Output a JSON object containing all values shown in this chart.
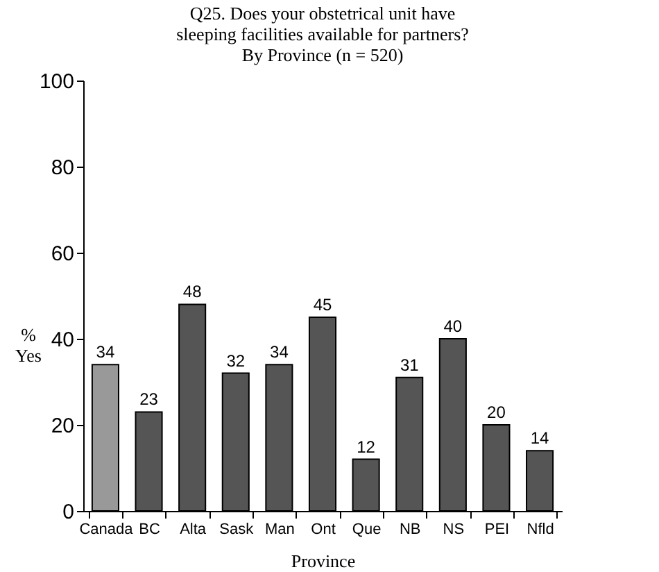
{
  "chart_data": {
    "type": "bar",
    "title": [
      "Q25. Does your obstetrical unit have",
      "sleeping facilities available for partners?",
      "By Province (n = 520)"
    ],
    "xlabel": "Province",
    "ylabel": "% Yes",
    "categories": [
      "Canada",
      "BC",
      "Alta",
      "Sask",
      "Man",
      "Ont",
      "Que",
      "NB",
      "NS",
      "PEI",
      "Nfld"
    ],
    "values": [
      34,
      23,
      48,
      32,
      34,
      45,
      12,
      31,
      40,
      20,
      14
    ],
    "colors": [
      "#999999",
      "#555555",
      "#555555",
      "#555555",
      "#555555",
      "#555555",
      "#555555",
      "#555555",
      "#555555",
      "#555555",
      "#555555"
    ],
    "ylim": [
      0,
      100
    ],
    "yticks": [
      0,
      20,
      40,
      60,
      80,
      100
    ],
    "data_labels": true,
    "grid": false
  }
}
